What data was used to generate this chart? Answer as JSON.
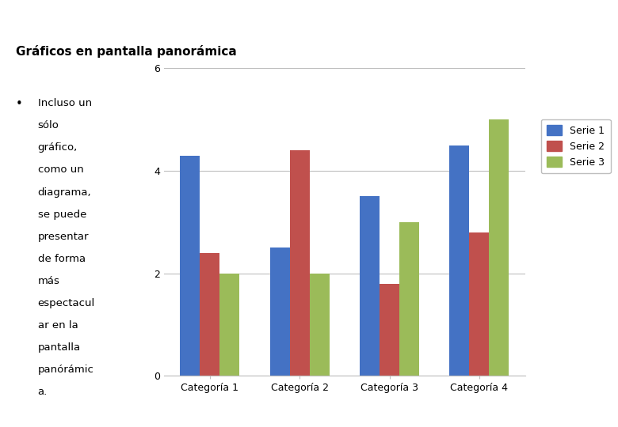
{
  "title": "Gráficos en pantalla panorámica",
  "bullet_lines": [
    "Incluso un",
    "sólo",
    "gráfico,",
    "como un",
    "diagrama,",
    "se puede",
    "presentar",
    "de forma",
    "más",
    "espectacul",
    "ar en la",
    "pantalla",
    "panórámic",
    "a."
  ],
  "categories": [
    "Categoría 1",
    "Categoría 2",
    "Categoría 3",
    "Categoría 4"
  ],
  "series": [
    {
      "name": "Serie 1",
      "color": "#4472C4",
      "values": [
        4.3,
        2.5,
        3.5,
        4.5
      ]
    },
    {
      "name": "Serie 2",
      "color": "#C0504D",
      "values": [
        2.4,
        4.4,
        1.8,
        2.8
      ]
    },
    {
      "name": "Serie 3",
      "color": "#9BBB59",
      "values": [
        2.0,
        2.0,
        3.0,
        5.0
      ]
    }
  ],
  "ylim": [
    0,
    6
  ],
  "yticks": [
    0,
    2,
    4,
    6
  ],
  "background_color": "#FFFFFF",
  "title_fontsize": 11,
  "bullet_fontsize": 9.5,
  "axis_fontsize": 9,
  "legend_fontsize": 9,
  "bar_width": 0.22,
  "grid_color": "#BEBEBE",
  "spine_color": "#BEBEBE"
}
